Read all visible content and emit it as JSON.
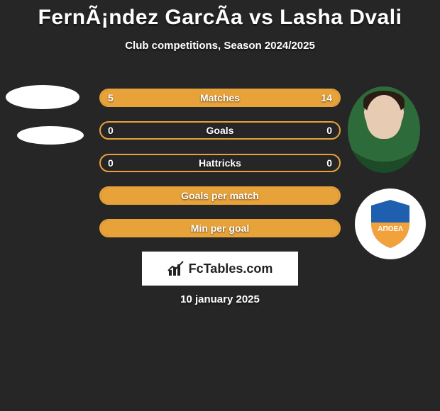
{
  "title": "FernÃ¡ndez GarcÃ­a vs Lasha Dvali",
  "subtitle": "Club competitions, Season 2024/2025",
  "date_line": "10 january 2025",
  "fctables_label": "FcTables.com",
  "colors": {
    "background": "#262626",
    "text": "#ffffff",
    "bar_fill": "#e8a23a",
    "bar_border": "#e8a23a",
    "badge_bg": "#ffffff",
    "shield_top": "#1f5fb0",
    "shield_bottom": "#f2a23c",
    "shield_text": "#ffffff"
  },
  "badge_text": "ΑΠΟΕΛ",
  "stats": [
    {
      "label": "Matches",
      "left_value": "5",
      "right_value": "14",
      "left_pct": 26,
      "right_pct": 74,
      "show_values": true
    },
    {
      "label": "Goals",
      "left_value": "0",
      "right_value": "0",
      "left_pct": 0,
      "right_pct": 0,
      "show_values": true
    },
    {
      "label": "Hattricks",
      "left_value": "0",
      "right_value": "0",
      "left_pct": 0,
      "right_pct": 0,
      "show_values": true
    },
    {
      "label": "Goals per match",
      "left_value": "",
      "right_value": "",
      "left_pct": 100,
      "right_pct": 0,
      "show_values": false
    },
    {
      "label": "Min per goal",
      "left_value": "",
      "right_value": "",
      "left_pct": 100,
      "right_pct": 0,
      "show_values": false
    }
  ]
}
